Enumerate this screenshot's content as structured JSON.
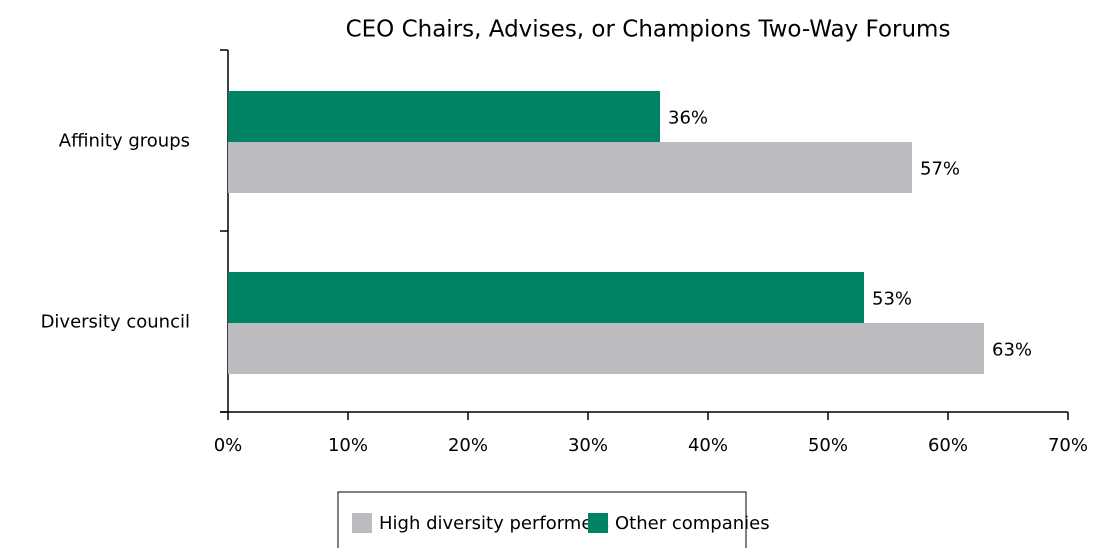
{
  "chart_data": {
    "type": "bar",
    "orientation": "horizontal",
    "title": "CEO Chairs, Advises, or Champions Two-Way Forums",
    "categories": [
      "Affinity groups",
      "Diversity council"
    ],
    "series": [
      {
        "name": "High diversity performers",
        "color": "#bcbcc0",
        "values": [
          57,
          63
        ],
        "value_labels": [
          "57%",
          "63%"
        ]
      },
      {
        "name": "Other companies",
        "color": "#008264",
        "values": [
          36,
          53
        ],
        "value_labels": [
          "36%",
          "53%"
        ]
      }
    ],
    "xlim": [
      0,
      70
    ],
    "xticks": [
      {
        "value": 0,
        "label": "0%"
      },
      {
        "value": 10,
        "label": "10%"
      },
      {
        "value": 20,
        "label": "20%"
      },
      {
        "value": 30,
        "label": "30%"
      },
      {
        "value": 40,
        "label": "40%"
      },
      {
        "value": 50,
        "label": "50%"
      },
      {
        "value": 60,
        "label": "60%"
      },
      {
        "value": 70,
        "label": "70%"
      }
    ],
    "legend": "bottom"
  }
}
